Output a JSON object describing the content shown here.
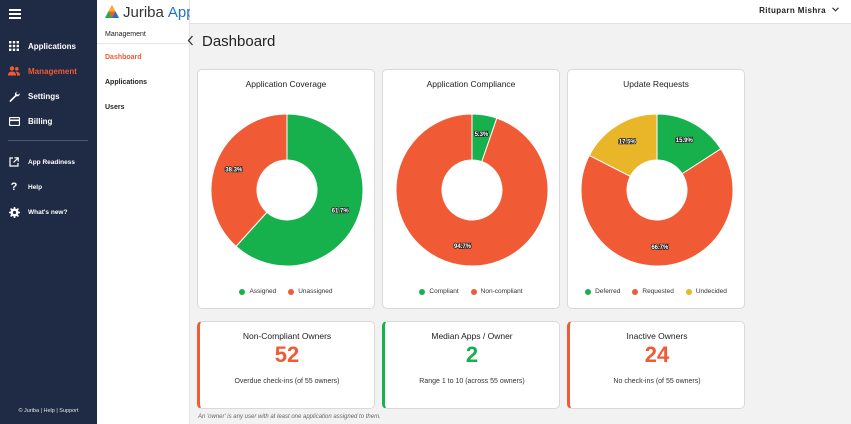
{
  "app": {
    "logo_juriba": "Juriba",
    "logo_product": "App Owner"
  },
  "user": {
    "name": "Rituparn Mishra"
  },
  "sidebar": {
    "items": [
      {
        "label": "Applications",
        "icon": "grid-icon"
      },
      {
        "label": "Management",
        "icon": "people-icon",
        "active": true
      },
      {
        "label": "Settings",
        "icon": "wrench-icon"
      },
      {
        "label": "Billing",
        "icon": "card-icon"
      }
    ],
    "secondary": [
      {
        "label": "App Readiness",
        "icon": "external-link-icon"
      },
      {
        "label": "Help",
        "icon": "question-icon"
      },
      {
        "label": "What's new?",
        "icon": "gear-icon"
      }
    ],
    "footer": "© Juriba | Help | Support"
  },
  "submenu": {
    "header": "Management",
    "items": [
      {
        "label": "Dashboard",
        "active": true
      },
      {
        "label": "Applications"
      },
      {
        "label": "Users"
      }
    ]
  },
  "page": {
    "title": "Dashboard"
  },
  "colors": {
    "green": "#16b14d",
    "orange": "#f05a35",
    "yellow": "#e8b628",
    "navy": "#1f2a44",
    "blue": "#1e73c8"
  },
  "chart_data": [
    {
      "type": "pie",
      "title": "Application Coverage",
      "categories": [
        "Assigned",
        "Unassigned"
      ],
      "values": [
        61.7,
        38.3
      ],
      "labels": [
        "61.7%",
        "38.3%"
      ],
      "colors": [
        "#16b14d",
        "#f05a35"
      ]
    },
    {
      "type": "pie",
      "title": "Application Compliance",
      "categories": [
        "Compliant",
        "Non-compliant"
      ],
      "values": [
        5.3,
        94.7
      ],
      "labels": [
        "5.3%",
        "94.7%"
      ],
      "colors": [
        "#16b14d",
        "#f05a35"
      ]
    },
    {
      "type": "pie",
      "title": "Update Requests",
      "categories": [
        "Deferred",
        "Requested",
        "Undecided"
      ],
      "values": [
        15.9,
        66.7,
        17.5
      ],
      "labels": [
        "15.9%",
        "66.7%",
        "17.5%"
      ],
      "colors": [
        "#16b14d",
        "#f05a35",
        "#e8b628"
      ]
    }
  ],
  "stats": [
    {
      "title": "Non-Compliant Owners",
      "value": "52",
      "sub": "Overdue check-ins (of 55 owners)",
      "color": "#f05a35"
    },
    {
      "title": "Median Apps / Owner",
      "value": "2",
      "sub": "Range 1 to 10 (across 55 owners)",
      "color": "#16b14d"
    },
    {
      "title": "Inactive Owners",
      "value": "24",
      "sub": "No check-ins (of 55 owners)",
      "color": "#f05a35"
    }
  ],
  "footnote": "An 'owner' is any user with at least one application assigned to them."
}
